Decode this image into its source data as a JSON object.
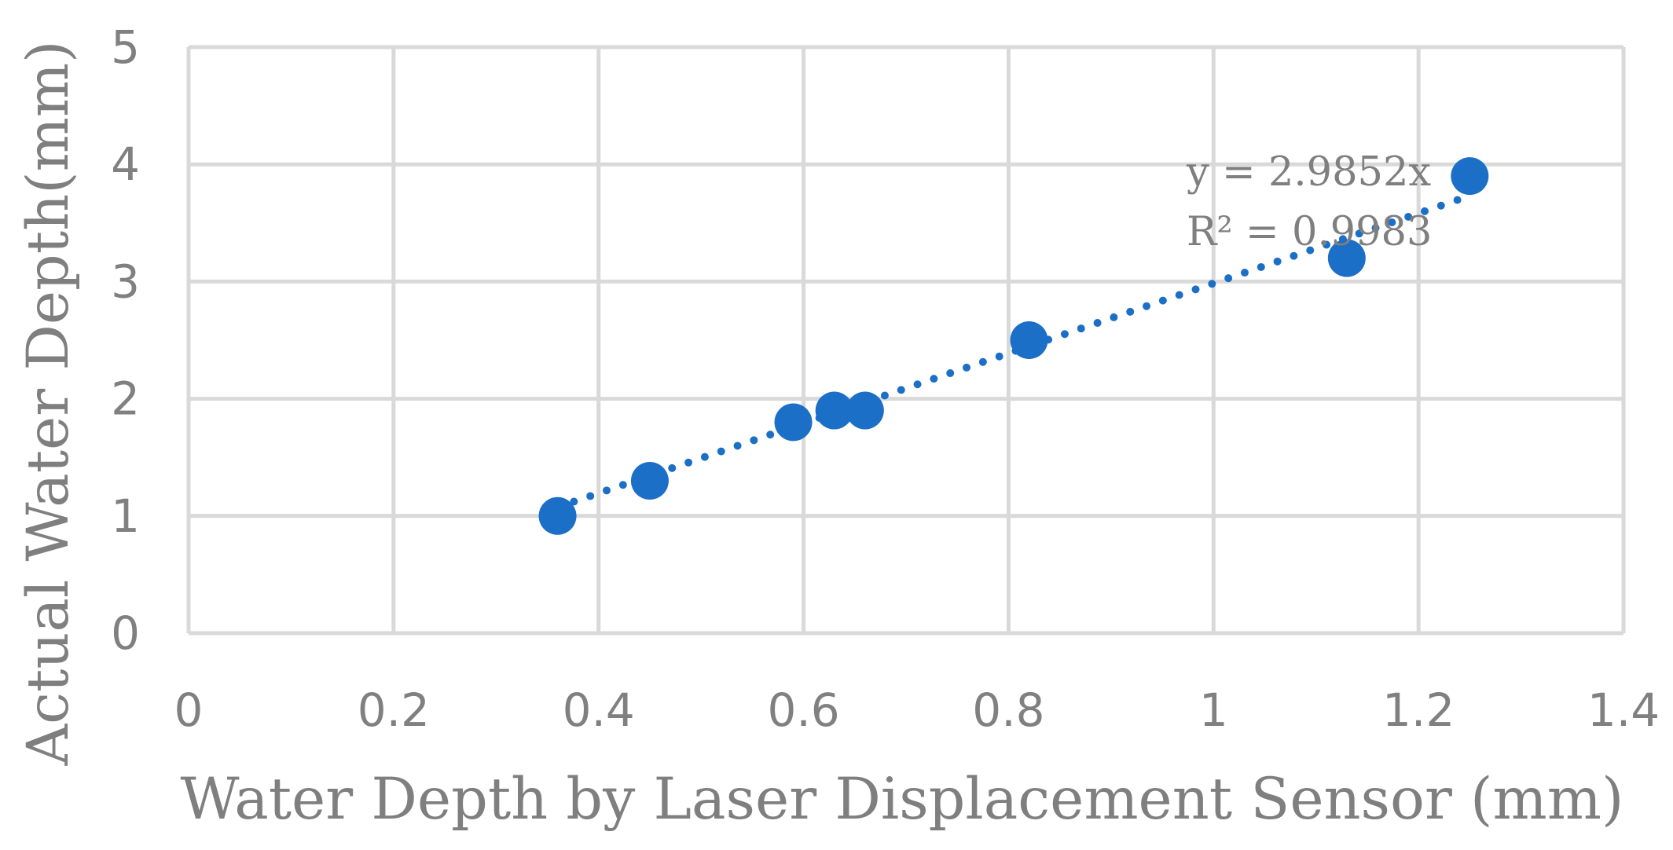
{
  "chart_data": {
    "type": "scatter",
    "xlabel": "Water Depth by Laser Displacement Sensor (mm)",
    "ylabel": "Actual Water Depth(mm)",
    "xlim": [
      0,
      1.4
    ],
    "ylim": [
      0,
      5
    ],
    "x_ticks": [
      "0",
      "0.2",
      "0.4",
      "0.6",
      "0.8",
      "1",
      "1.2",
      "1.4"
    ],
    "y_ticks": [
      "0",
      "1",
      "2",
      "3",
      "4",
      "5"
    ],
    "grid": true,
    "series": [
      {
        "color": "#1c6fc6",
        "points": [
          {
            "x": 0.36,
            "y": 1.0
          },
          {
            "x": 0.45,
            "y": 1.3
          },
          {
            "x": 0.59,
            "y": 1.8
          },
          {
            "x": 0.63,
            "y": 1.9
          },
          {
            "x": 0.66,
            "y": 1.9
          },
          {
            "x": 0.82,
            "y": 2.5
          },
          {
            "x": 1.13,
            "y": 3.2
          },
          {
            "x": 1.25,
            "y": 3.9
          }
        ]
      }
    ],
    "trendline": {
      "type": "linear-through-origin",
      "slope": 2.9852,
      "style": "dotted",
      "color": "#1c6fc6",
      "equation": "y = 2.9852x",
      "r_squared": "R² = 0.9983"
    }
  }
}
